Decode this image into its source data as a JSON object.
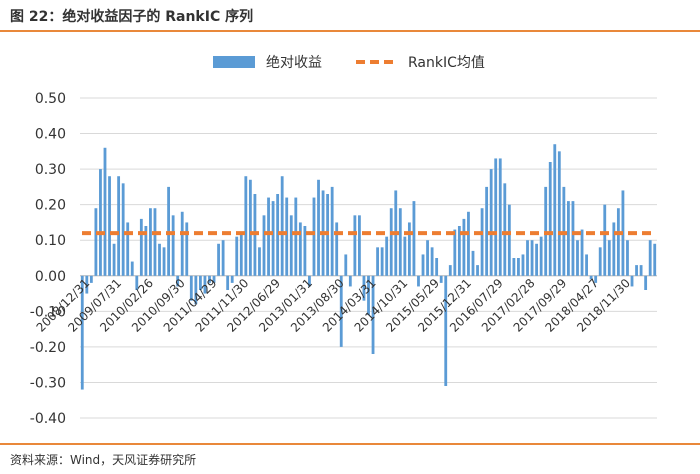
{
  "header": {
    "title": "图 22：绝对收益因子的 RankIC 序列"
  },
  "footer": {
    "source": "资料来源：Wind，天风证券研究所"
  },
  "chart_data": {
    "type": "bar",
    "series": [
      {
        "name": "绝对收益",
        "kind": "bar",
        "color": "#5b9bd5",
        "values": [
          -0.32,
          -0.05,
          -0.02,
          0.19,
          0.3,
          0.36,
          0.28,
          0.09,
          0.28,
          0.26,
          0.15,
          0.04,
          -0.04,
          0.16,
          0.14,
          0.19,
          0.19,
          0.09,
          0.08,
          0.25,
          0.17,
          -0.03,
          0.18,
          0.15,
          -0.07,
          -0.08,
          -0.04,
          -0.05,
          -0.02,
          -0.02,
          0.09,
          0.1,
          -0.04,
          -0.02,
          0.11,
          0.12,
          0.28,
          0.27,
          0.23,
          0.08,
          0.17,
          0.22,
          0.21,
          0.23,
          0.28,
          0.22,
          0.17,
          0.22,
          0.15,
          0.14,
          -0.03,
          0.22,
          0.27,
          0.24,
          0.23,
          0.25,
          0.15,
          -0.2,
          0.06,
          -0.03,
          0.17,
          0.17,
          -0.07,
          -0.11,
          -0.22,
          0.08,
          0.08,
          0.11,
          0.19,
          0.24,
          0.19,
          0.11,
          0.15,
          0.21,
          -0.03,
          0.06,
          0.1,
          0.08,
          0.05,
          -0.02,
          -0.31,
          0.03,
          0.13,
          0.14,
          0.16,
          0.18,
          0.07,
          0.03,
          0.19,
          0.25,
          0.3,
          0.33,
          0.33,
          0.26,
          0.2,
          0.05,
          0.05,
          0.06,
          0.1,
          0.1,
          0.09,
          0.11,
          0.25,
          0.32,
          0.37,
          0.35,
          0.25,
          0.21,
          0.21,
          0.1,
          0.13,
          0.06,
          -0.01,
          -0.02,
          0.08,
          0.2,
          0.1,
          0.15,
          0.19,
          0.24,
          0.1,
          -0.03,
          0.03,
          0.03,
          -0.04,
          0.1,
          0.09
        ]
      },
      {
        "name": "RankIC均值",
        "kind": "line",
        "style": "dashed",
        "color": "#ed7d31",
        "value": 0.12
      }
    ],
    "x_tick_labels": [
      "2008/12/31",
      "2009/07/31",
      "2010/02/26",
      "2010/09/30",
      "2011/04/29",
      "2011/11/30",
      "2012/06/29",
      "2013/01/31",
      "2013/08/30",
      "2014/03/31",
      "2014/10/31",
      "2015/05/29",
      "2015/12/31",
      "2016/07/29",
      "2017/02/28",
      "2017/09/29",
      "2018/04/27",
      "2018/11/30"
    ],
    "y_ticks": [
      "0.50",
      "0.40",
      "0.30",
      "0.20",
      "0.10",
      "0.00",
      "-0.10",
      "-0.20",
      "-0.30",
      "-0.40"
    ],
    "ylim": [
      -0.4,
      0.5
    ],
    "grid": true,
    "legend_position": "top-center"
  }
}
